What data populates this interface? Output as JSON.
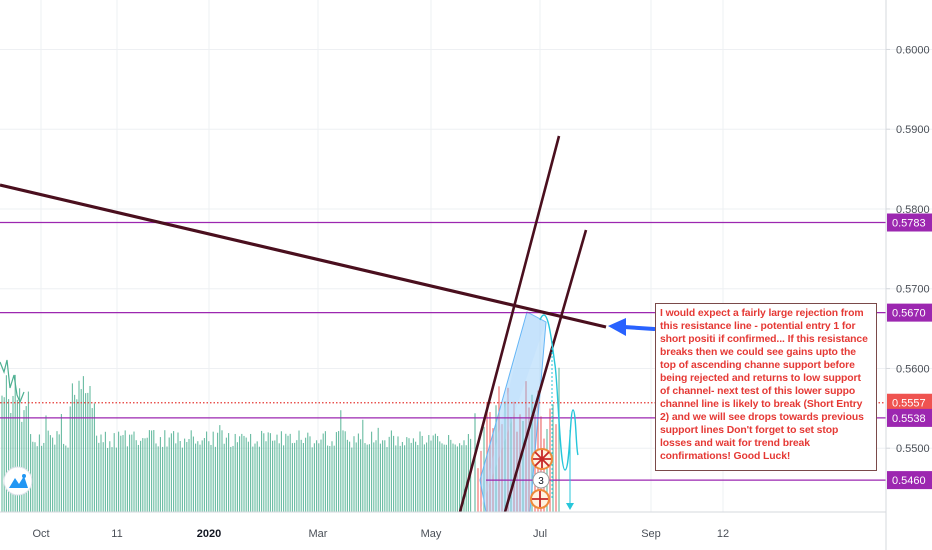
{
  "chart_data": {
    "type": "line",
    "x_ticks": [
      "Oct",
      "11",
      "2020",
      "Mar",
      "May",
      "Jul",
      "Sep",
      "12"
    ],
    "bold_ticks": [
      "2020"
    ],
    "y_ticks": [
      0.55,
      0.56,
      0.57,
      0.58,
      0.59,
      0.6
    ],
    "ylim": [
      0.542,
      0.6062
    ],
    "price_levels": [
      {
        "value": 0.5783,
        "label": "0.5783",
        "style": "solid"
      },
      {
        "value": 0.567,
        "label": "0.5670",
        "style": "solid"
      },
      {
        "value": 0.5557,
        "label": "0.5557",
        "style": "dotted"
      },
      {
        "value": 0.5538,
        "label": "0.5538",
        "style": "solid"
      },
      {
        "value": 0.546,
        "label": "0.5460",
        "style": "solid"
      }
    ],
    "level_color": "#9c27b0",
    "trendline_color": "#4a0f1e",
    "bar_color": "#4caf91",
    "bar_down_color": "#ef5350",
    "channel_color": "#90caf9",
    "projection_color": "#26c6da",
    "arrow_color": "#2962ff",
    "event_badge_count": "3",
    "annotation": "I would expect a fairly large rejection from this resistance line - potential entry 1 for short positi if confirmed... If this resistance breaks then we could see gains upto the top of ascending channe support before being rejected and returns to low support of channel- next test of this lower suppo channel line is likely to break (Short Entry 2) and we will see drops towards previous support lines Don't forget to set stop losses and wait for trend break confirmations! Good Luck!"
  }
}
